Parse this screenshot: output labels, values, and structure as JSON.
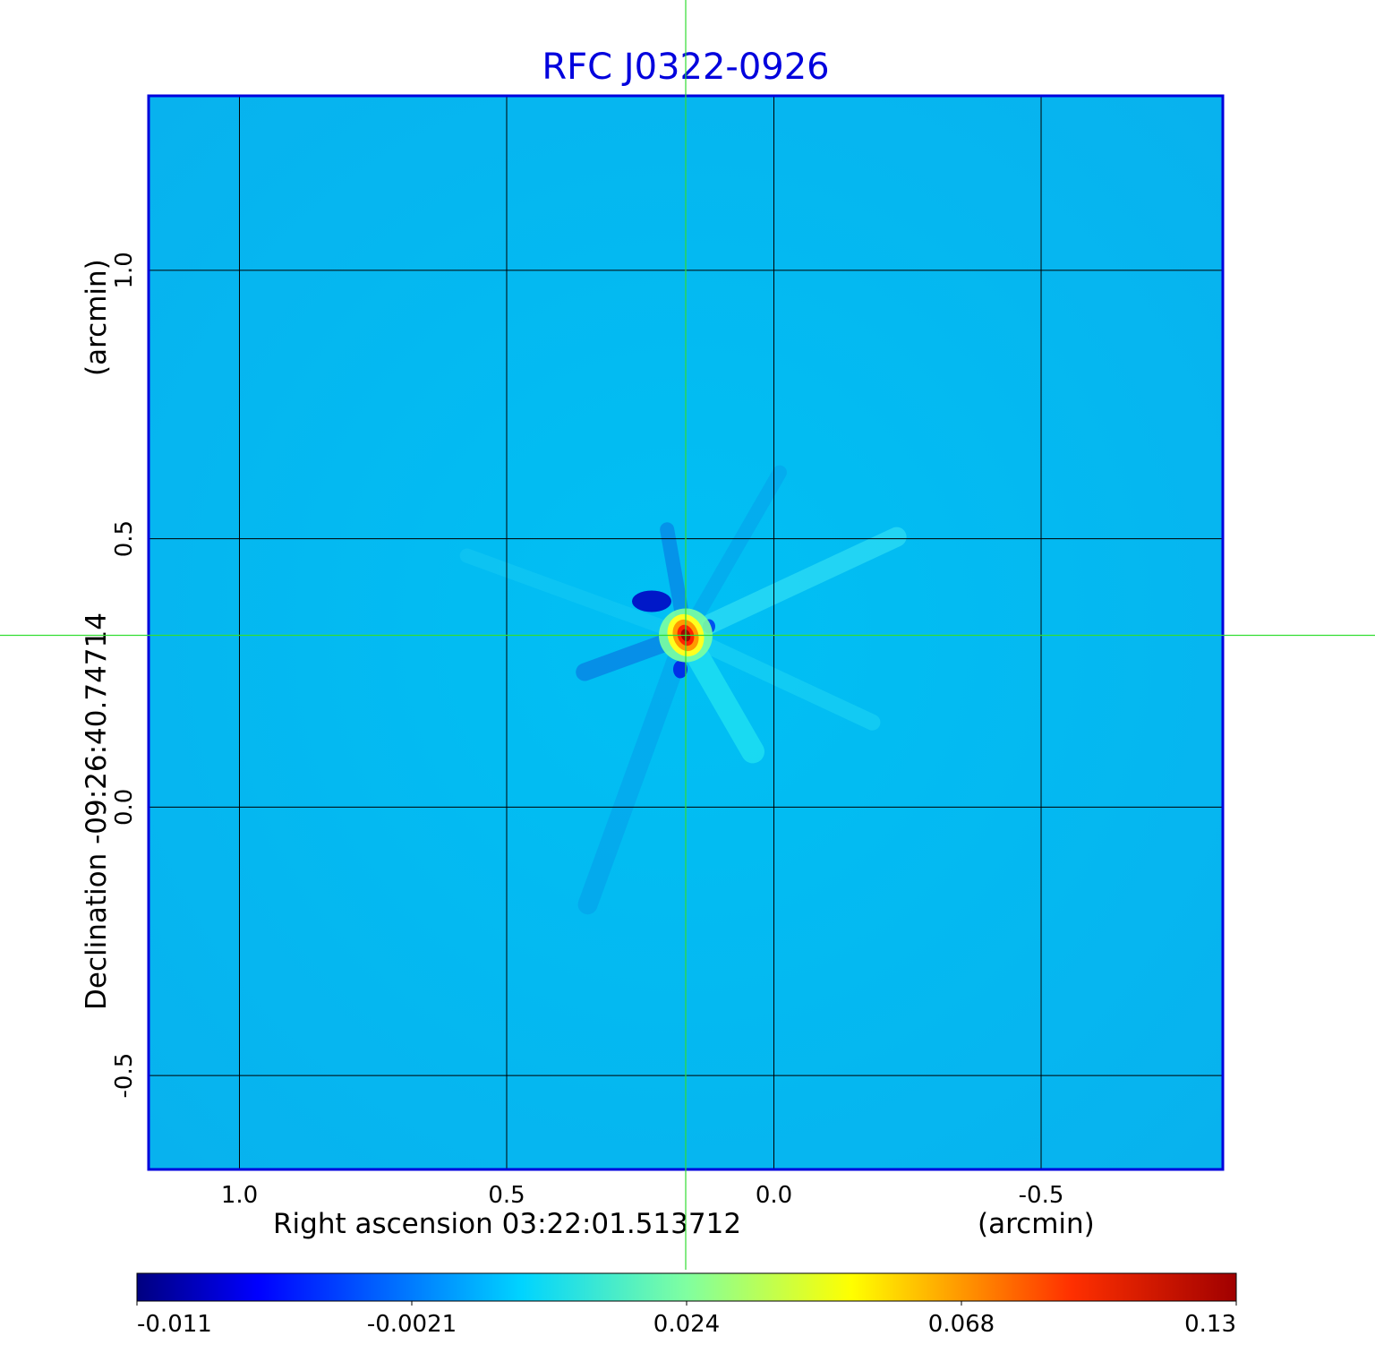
{
  "chart_data": {
    "type": "heatmap",
    "title": "RFC J0322-0926",
    "x_axis": {
      "label": "Right ascension  03:22:01.513712",
      "unit_label": "(arcmin)",
      "ticks": [
        "1.0",
        "0.5",
        "0.0",
        "-0.5"
      ],
      "tick_values": [
        1.0,
        0.5,
        0.0,
        -0.5
      ],
      "range": [
        1.17,
        -0.84
      ],
      "grid": true
    },
    "y_axis": {
      "label": "Declination  -09:26:40.74714",
      "unit_label": "(arcmin)",
      "ticks": [
        "1.0",
        "0.5",
        "0.0",
        "-0.5"
      ],
      "tick_values": [
        1.0,
        0.5,
        0.0,
        -0.5
      ],
      "range": [
        -0.675,
        1.325
      ],
      "grid": true
    },
    "crosshair": {
      "x": 0.165,
      "y": 0.32
    },
    "colorbar": {
      "colormap": "jet",
      "tick_labels": [
        "-0.011",
        "-0.0021",
        "0.024",
        "0.068",
        "0.13"
      ],
      "range": [
        -0.011,
        0.13
      ]
    },
    "source_peak": {
      "x": 0.165,
      "y": 0.32,
      "value": 0.13
    },
    "colors": {
      "title": "#0000dd",
      "frame": "#0000dd",
      "crosshair": "#33dd33",
      "grid": "#000000"
    }
  }
}
